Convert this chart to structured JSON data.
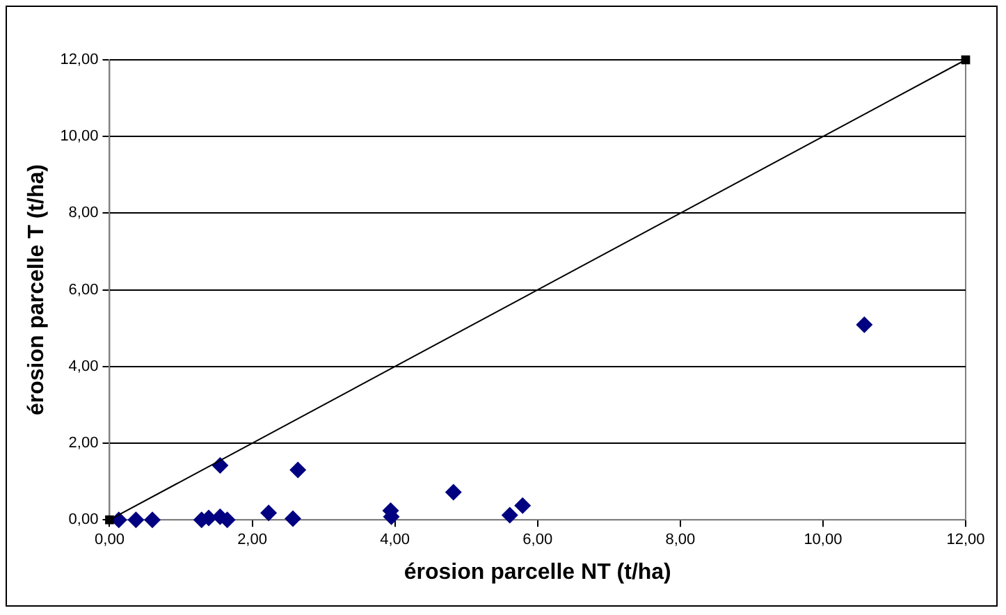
{
  "chart_data": {
    "type": "scatter",
    "xlabel": "érosion parcelle NT (t/ha)",
    "ylabel": "érosion parcelle T (t/ha)",
    "xlim": [
      0,
      12
    ],
    "ylim": [
      0,
      12
    ],
    "xticks": [
      {
        "value": 0,
        "label": "0,00"
      },
      {
        "value": 2,
        "label": "2,00"
      },
      {
        "value": 4,
        "label": "4,00"
      },
      {
        "value": 6,
        "label": "6,00"
      },
      {
        "value": 8,
        "label": "8,00"
      },
      {
        "value": 10,
        "label": "10,00"
      },
      {
        "value": 12,
        "label": "12,00"
      }
    ],
    "yticks": [
      {
        "value": 0,
        "label": "0,00"
      },
      {
        "value": 2,
        "label": "2,00"
      },
      {
        "value": 4,
        "label": "4,00"
      },
      {
        "value": 6,
        "label": "6,00"
      },
      {
        "value": 8,
        "label": "8,00"
      },
      {
        "value": 10,
        "label": "10,00"
      },
      {
        "value": 12,
        "label": "12,00"
      }
    ],
    "grid": "y",
    "legend": false,
    "series": [
      {
        "type": "scatter",
        "color": "#000080",
        "marker": "diamond",
        "x": [
          0.13,
          0.37,
          0.6,
          1.29,
          1.39,
          1.55,
          1.55,
          1.65,
          2.23,
          2.57,
          2.64,
          3.94,
          3.95,
          4.82,
          5.61,
          5.79,
          10.58
        ],
        "values": [
          0,
          0,
          0,
          0,
          0.05,
          1.42,
          0.08,
          0,
          0.18,
          0.03,
          1.3,
          0.24,
          0.08,
          0.72,
          0.12,
          0.37,
          5.09
        ]
      },
      {
        "type": "line",
        "color": "#000000",
        "marker": "square",
        "x": [
          0,
          12
        ],
        "values": [
          0,
          12
        ]
      }
    ]
  }
}
